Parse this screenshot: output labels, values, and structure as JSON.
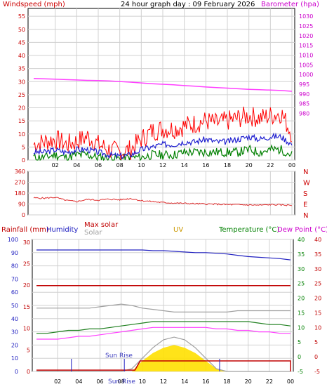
{
  "header": {
    "wind_title": "Windspeed (mph)",
    "graph_title": "24 hour graph day : 09 February 2026",
    "baro_title": "Barometer (hpa)"
  },
  "colors": {
    "wind_gust": "#ff0000",
    "wind_avg": "#2020d0",
    "wind_low": "#008000",
    "barometer": "#ff40ff",
    "direction": "#e03030",
    "humidity": "#2020c0",
    "rain": "#c00000",
    "solar": "#a0a0a0",
    "uv": "#ffe000",
    "temperature": "#208020",
    "dewpoint": "#ff40ff",
    "axis_red": "#cc0000",
    "axis_magenta": "#cc00cc",
    "axis_green": "#008000",
    "grid": "#d0d0d0"
  },
  "chart_data": [
    {
      "type": "line",
      "title": "24 hour graph day : 09 February 2026",
      "ylabel": "Windspeed (mph)",
      "y2label": "Barometer (hpa)",
      "ylim": [
        0,
        58
      ],
      "y2lim": [
        956,
        1034
      ],
      "yticks": [
        "0",
        "5",
        "10",
        "15",
        "20",
        "25",
        "30",
        "35",
        "40",
        "45",
        "50",
        "55"
      ],
      "y2ticks": [
        "980",
        "985",
        "990",
        "995",
        "1000",
        "1005",
        "1010",
        "1015",
        "1020",
        "1025",
        "1030"
      ],
      "xticks": [
        "02",
        "04",
        "06",
        "08",
        "10",
        "12",
        "14",
        "16",
        "18",
        "20",
        "22",
        "00"
      ],
      "x_hours": [
        0,
        1,
        2,
        3,
        4,
        5,
        6,
        7,
        8,
        9,
        10,
        11,
        12,
        13,
        14,
        15,
        16,
        17,
        18,
        19,
        20,
        21,
        22,
        23,
        24
      ],
      "series": [
        {
          "key": "gust",
          "values": [
            6,
            7,
            8,
            6,
            7,
            9,
            6,
            4,
            3,
            4,
            8,
            11,
            12,
            12,
            13,
            14,
            15,
            14,
            15,
            16,
            17,
            16,
            17,
            18,
            10
          ]
        },
        {
          "key": "avg",
          "values": [
            3,
            3,
            4,
            3,
            4,
            4,
            3,
            2,
            1.5,
            2,
            4,
            5,
            6,
            6,
            7,
            7,
            8,
            7,
            7,
            8,
            9,
            8,
            9,
            9,
            6
          ]
        },
        {
          "key": "low",
          "values": [
            1,
            1,
            2,
            1,
            2,
            2,
            1,
            1,
            0.5,
            1,
            1,
            2,
            2,
            2,
            3,
            3,
            3,
            3,
            3,
            3,
            4,
            3,
            4,
            4,
            2
          ]
        },
        {
          "key": "barometer",
          "values": [
            998,
            997.8,
            997.6,
            997.4,
            997.2,
            997,
            996.9,
            996.7,
            996.4,
            996.1,
            995.7,
            995.3,
            995,
            994.7,
            994.3,
            994,
            993.6,
            993.3,
            993,
            992.7,
            992.4,
            992.2,
            992,
            991.8,
            991.4
          ]
        }
      ]
    },
    {
      "type": "line",
      "ylabel": "Wind direction",
      "ylim": [
        0,
        360
      ],
      "yticks": [
        "0",
        "90",
        "180",
        "270",
        "360"
      ],
      "compass": [
        "N",
        "W",
        "S",
        "E",
        "N"
      ],
      "xticks": [
        "02",
        "04",
        "06",
        "08",
        "10",
        "12",
        "14",
        "16",
        "18",
        "20",
        "22",
        "00"
      ],
      "x_hours": [
        0,
        1,
        2,
        3,
        4,
        5,
        6,
        7,
        8,
        9,
        10,
        11,
        12,
        13,
        14,
        15,
        16,
        17,
        18,
        19,
        20,
        21,
        22,
        23,
        24
      ],
      "series": [
        {
          "key": "direction",
          "values": [
            140,
            138,
            145,
            120,
            110,
            128,
            122,
            130,
            125,
            135,
            118,
            110,
            102,
            98,
            95,
            92,
            90,
            88,
            85,
            84,
            82,
            80,
            85,
            82,
            80
          ]
        }
      ]
    },
    {
      "type": "line",
      "labels": {
        "rain": "Rainfall (mm)",
        "humidity": "Humidity",
        "max_solar": "Max solar",
        "solar": "Solar",
        "uv": "UV",
        "temperature": "Temperature (°C)",
        "dewpoint": "Dew Point (°C)"
      },
      "yticks_left": [
        "0",
        "10",
        "20",
        "30",
        "40",
        "50",
        "60",
        "70",
        "80",
        "90",
        "100"
      ],
      "yticks_rain": [
        "0",
        "5",
        "10",
        "15",
        "20",
        "25",
        "30"
      ],
      "yticks_temp": [
        "-5",
        "0",
        "5",
        "10",
        "15",
        "20",
        "25",
        "30",
        "35",
        "40"
      ],
      "yticks_dew": [
        "-5",
        "0",
        "5",
        "10",
        "15",
        "20",
        "25",
        "30",
        "35",
        "40"
      ],
      "xticks": [
        "02",
        "04",
        "06",
        "08",
        "10",
        "12",
        "14",
        "16",
        "18",
        "20",
        "22",
        "00"
      ],
      "x_hours": [
        0,
        1,
        2,
        3,
        4,
        5,
        6,
        7,
        8,
        9,
        10,
        11,
        12,
        13,
        14,
        15,
        16,
        17,
        18,
        19,
        20,
        21,
        22,
        23,
        24
      ],
      "series": [
        {
          "key": "humidity",
          "axis": "pct",
          "values": [
            92,
            92,
            92,
            92,
            92,
            92,
            92,
            92,
            92,
            92,
            92,
            91.5,
            91.5,
            91,
            90.5,
            90,
            90,
            89.5,
            89,
            88,
            87,
            86.5,
            86,
            85.5,
            84.5
          ]
        },
        {
          "key": "rain",
          "axis": "pct",
          "values": [
            65,
            65,
            65,
            65,
            65,
            65,
            65,
            65,
            65,
            65,
            65,
            65,
            65,
            65,
            65,
            65,
            65,
            65,
            65,
            65,
            65,
            65,
            65,
            65,
            65
          ]
        },
        {
          "key": "solar",
          "axis": "pct",
          "values": [
            48,
            48,
            48,
            48,
            48,
            48,
            49,
            50,
            51,
            50,
            48,
            47,
            46,
            45,
            45,
            45,
            45,
            45,
            45,
            46,
            46,
            46,
            46,
            46,
            46
          ]
        },
        {
          "key": "temperature",
          "axis": "temp",
          "values": [
            8,
            8,
            8.5,
            9,
            9,
            9.5,
            9.5,
            10,
            10.5,
            11,
            11.5,
            12,
            12,
            12,
            12,
            12,
            12,
            12,
            12,
            12,
            12,
            11.5,
            11,
            11,
            10.5
          ]
        },
        {
          "key": "dewpoint",
          "axis": "temp",
          "values": [
            6,
            6,
            6,
            6.5,
            7,
            7,
            7.5,
            8,
            8.5,
            9,
            9.5,
            10,
            10,
            10,
            10,
            10,
            10,
            9.5,
            9.5,
            9,
            9,
            8.5,
            8.5,
            8,
            8
          ]
        },
        {
          "key": "uv",
          "axis": "pct",
          "values": [
            0,
            0,
            0,
            0,
            0,
            0,
            0,
            0,
            0,
            0,
            8,
            14,
            18,
            20,
            18,
            14,
            8,
            2,
            0,
            0,
            0,
            0,
            0,
            0,
            0
          ]
        }
      ],
      "max_solar_curve": [
        0,
        0,
        0,
        0,
        0,
        0,
        0,
        0,
        0,
        2,
        10,
        18,
        24,
        26,
        24,
        18,
        10,
        2,
        0,
        0,
        0,
        0,
        0,
        0,
        0
      ],
      "sunrise_label": "Sun Rise",
      "sunrise_marker": "Sun Rise",
      "sunrise_hour": 8.3,
      "sunset_hour": 17.3,
      "tick_marks_hours": [
        3.3,
        8.3,
        17.3
      ]
    }
  ]
}
